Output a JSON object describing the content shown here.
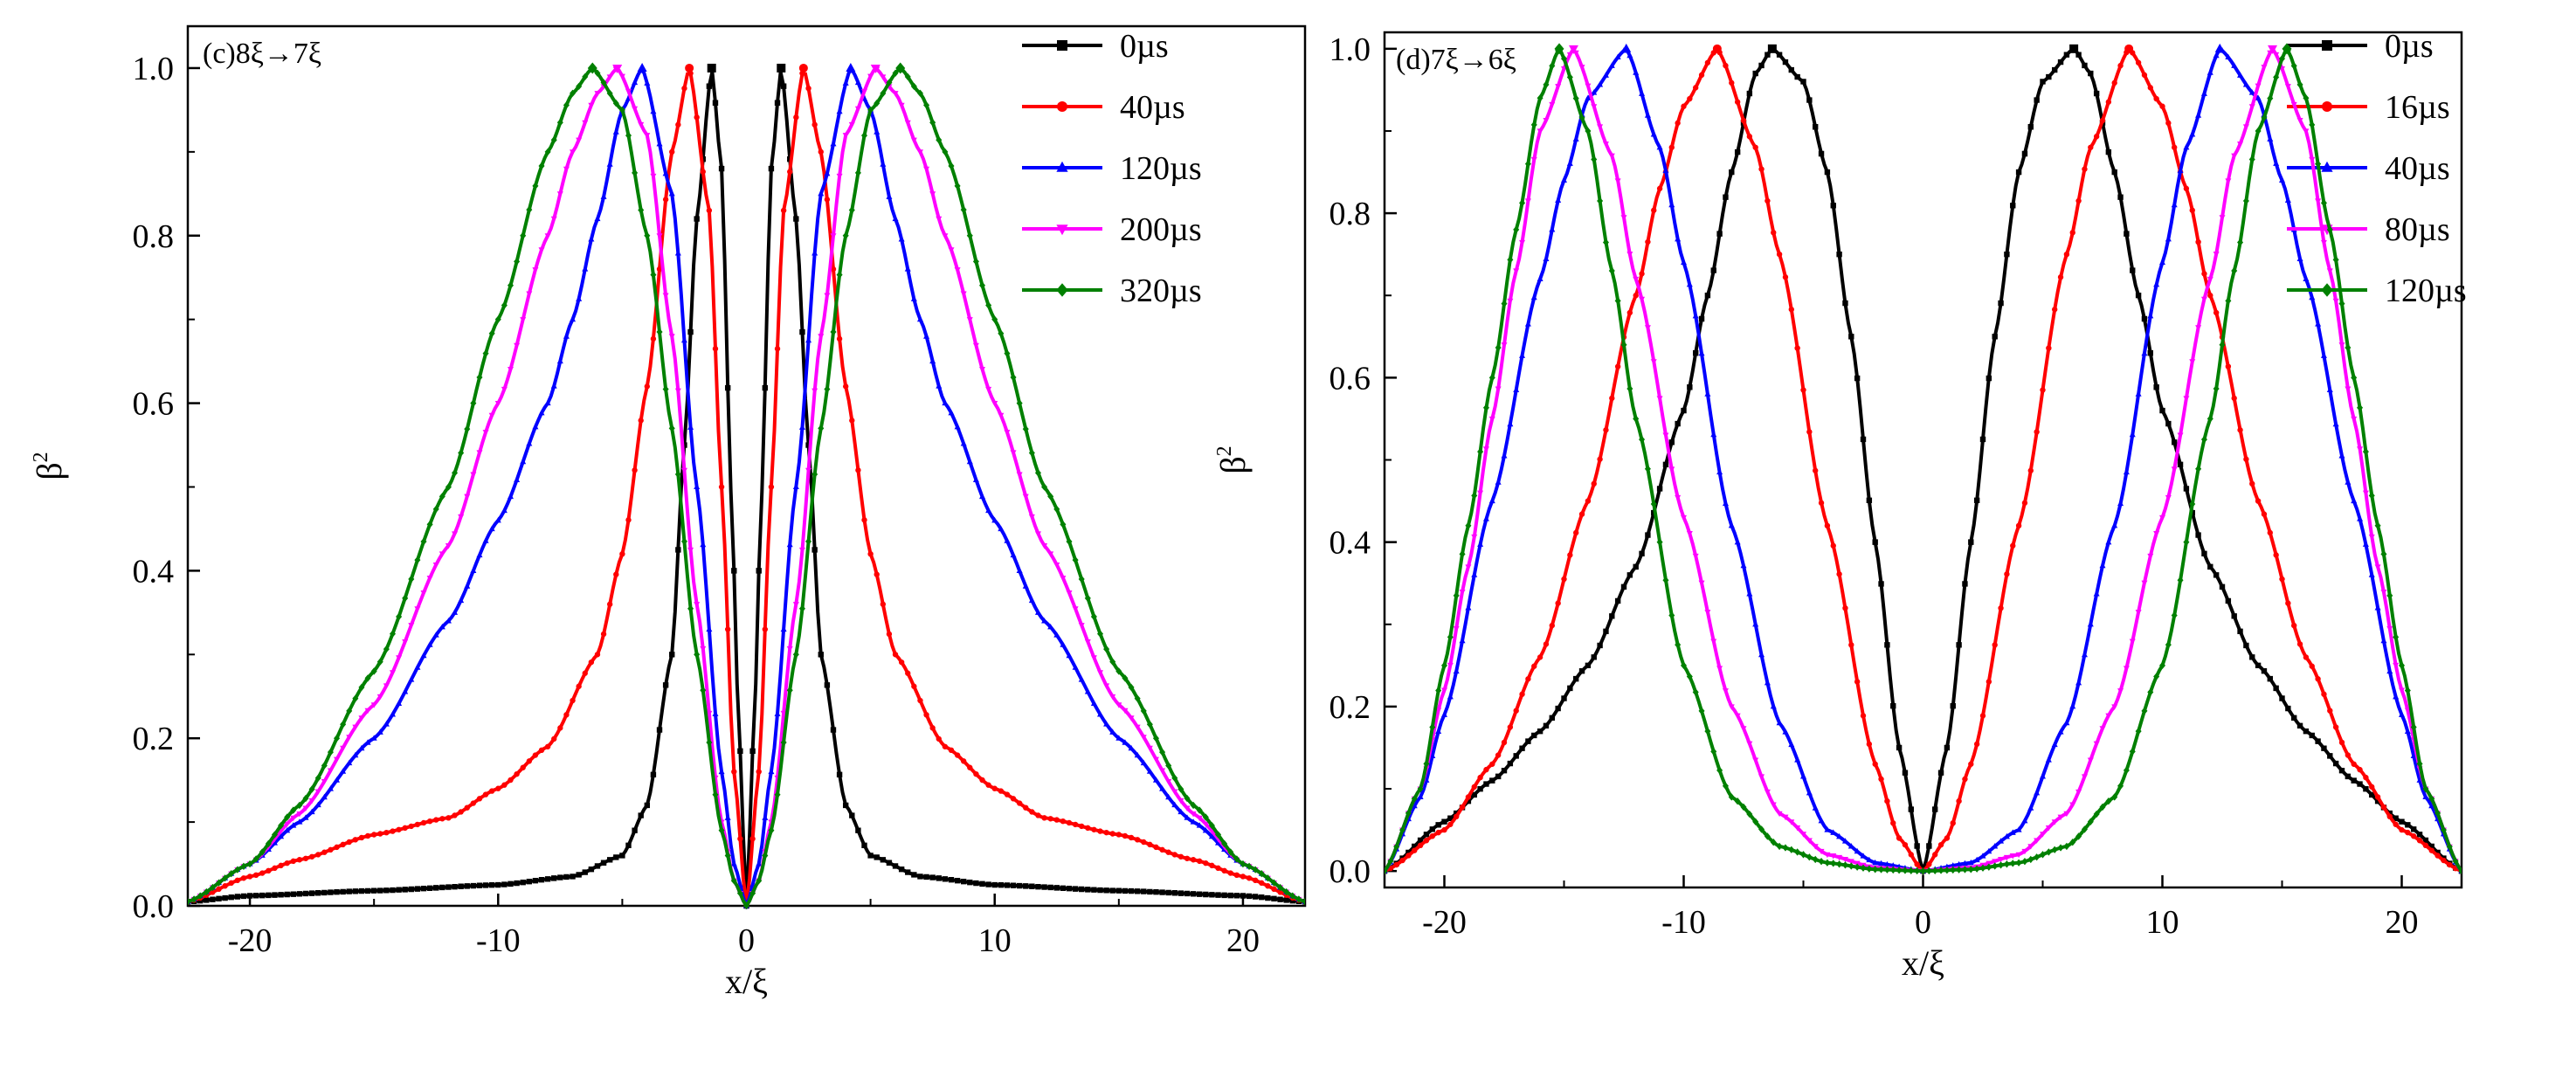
{
  "chart_data": [
    {
      "type": "line",
      "title": "(c)8ξ→7ξ",
      "xlabel": "x/ξ",
      "ylabel": "β",
      "ylabel_sup": "2",
      "xlim": [
        -22.5,
        22.5
      ],
      "ylim": [
        0,
        1.05
      ],
      "xticks": [
        -20,
        -10,
        0,
        10,
        20
      ],
      "yticks": [
        0.0,
        0.2,
        0.4,
        0.6,
        0.8,
        1.0
      ],
      "xtick_labels": [
        "-20",
        "-10",
        "0",
        "10",
        "20"
      ],
      "ytick_labels": [
        "0.0",
        "0.2",
        "0.4",
        "0.6",
        "0.8",
        "1.0"
      ],
      "legend_position": "top-right",
      "series": [
        {
          "name": "0µs",
          "color": "#000000",
          "marker": "square",
          "peak": 1.4,
          "x": [
            0,
            0.3,
            0.6,
            1.0,
            1.4,
            2.0,
            2.5,
            3.0,
            4.0,
            5.0,
            7.0,
            10.0,
            15.0,
            20.0,
            22.5
          ],
          "y": [
            0,
            0.21,
            0.48,
            0.88,
            1.0,
            0.82,
            0.55,
            0.3,
            0.12,
            0.06,
            0.035,
            0.025,
            0.018,
            0.012,
            0.005
          ]
        },
        {
          "name": "40µs",
          "color": "#ff0000",
          "marker": "circle",
          "peak": 2.3,
          "x": [
            0,
            0.5,
            1.0,
            1.5,
            2.3,
            3.0,
            4.0,
            5.0,
            6.0,
            8.0,
            10.0,
            12.0,
            15.0,
            18.0,
            20.0,
            22.5
          ],
          "y": [
            0,
            0.16,
            0.5,
            0.83,
            1.0,
            0.9,
            0.62,
            0.42,
            0.3,
            0.19,
            0.14,
            0.105,
            0.085,
            0.055,
            0.035,
            0.005
          ]
        },
        {
          "name": "120µs",
          "color": "#0000ff",
          "marker": "triangle",
          "peak": 4.2,
          "x": [
            0,
            0.5,
            1.0,
            2.0,
            3.0,
            4.2,
            5.0,
            6.0,
            7.0,
            8.0,
            10.0,
            12.0,
            15.0,
            18.0,
            20.0,
            22.5
          ],
          "y": [
            0,
            0.05,
            0.16,
            0.5,
            0.85,
            1.0,
            0.95,
            0.82,
            0.7,
            0.6,
            0.46,
            0.34,
            0.2,
            0.1,
            0.05,
            0.005
          ]
        },
        {
          "name": "200µs",
          "color": "#ff00ff",
          "marker": "tri-down",
          "peak": 5.2,
          "x": [
            0,
            0.5,
            1.0,
            2.0,
            3.0,
            4.0,
            5.2,
            6.0,
            7.0,
            8.0,
            10.0,
            12.0,
            15.0,
            18.0,
            20.0,
            22.5
          ],
          "y": [
            0,
            0.03,
            0.1,
            0.36,
            0.68,
            0.92,
            1.0,
            0.97,
            0.9,
            0.8,
            0.6,
            0.43,
            0.24,
            0.11,
            0.05,
            0.005
          ]
        },
        {
          "name": "320µs",
          "color": "#008000",
          "marker": "diamond",
          "peak": 6.2,
          "x": [
            0,
            0.5,
            1.0,
            2.0,
            3.0,
            4.0,
            5.0,
            6.2,
            7.0,
            8.0,
            10.0,
            12.0,
            15.0,
            18.0,
            20.0,
            22.5
          ],
          "y": [
            0,
            0.03,
            0.09,
            0.3,
            0.57,
            0.8,
            0.95,
            1.0,
            0.97,
            0.9,
            0.7,
            0.5,
            0.28,
            0.12,
            0.05,
            0.005
          ]
        }
      ]
    },
    {
      "type": "line",
      "title": "(d)7ξ→6ξ",
      "xlabel": "x/ξ",
      "ylabel": "β",
      "ylabel_sup": "2",
      "xlim": [
        -22.5,
        22.5
      ],
      "ylim": [
        -0.02,
        1.02
      ],
      "xticks": [
        -20,
        -10,
        0,
        10,
        20
      ],
      "yticks": [
        0.0,
        0.2,
        0.4,
        0.6,
        0.8,
        1.0
      ],
      "xtick_labels": [
        "-20",
        "-10",
        "0",
        "10",
        "20"
      ],
      "ytick_labels": [
        "0.0",
        "0.2",
        "0.4",
        "0.6",
        "0.8",
        "1.0"
      ],
      "legend_position": "top-right",
      "series": [
        {
          "name": "0µs",
          "color": "#000000",
          "marker": "square",
          "peak": 6.3,
          "x": [
            0,
            1.0,
            2.0,
            3.0,
            4.0,
            5.0,
            6.3,
            7.0,
            8.0,
            9.0,
            10.0,
            12.0,
            14.0,
            16.0,
            18.0,
            20.0,
            22.5
          ],
          "y": [
            0,
            0.15,
            0.4,
            0.65,
            0.85,
            0.96,
            1.0,
            0.97,
            0.85,
            0.7,
            0.56,
            0.37,
            0.25,
            0.17,
            0.11,
            0.06,
            0.0
          ]
        },
        {
          "name": "16µs",
          "color": "#ff0000",
          "marker": "circle",
          "peak": 8.6,
          "x": [
            0,
            1.0,
            2.0,
            4.0,
            6.0,
            7.0,
            8.6,
            10.0,
            11.0,
            12.0,
            14.0,
            16.0,
            18.0,
            20.0,
            22.5
          ],
          "y": [
            0,
            0.04,
            0.13,
            0.42,
            0.75,
            0.88,
            1.0,
            0.93,
            0.83,
            0.7,
            0.45,
            0.26,
            0.13,
            0.05,
            0.0
          ]
        },
        {
          "name": "40µs",
          "color": "#0000ff",
          "marker": "triangle",
          "peak": 12.4,
          "x": [
            0,
            2.0,
            4.0,
            6.0,
            8.0,
            10.0,
            11.0,
            12.4,
            14.0,
            15.0,
            16.0,
            18.0,
            20.0,
            21.0,
            22.5
          ],
          "y": [
            0,
            0.01,
            0.05,
            0.18,
            0.42,
            0.74,
            0.88,
            1.0,
            0.94,
            0.84,
            0.72,
            0.45,
            0.19,
            0.09,
            0.0
          ]
        },
        {
          "name": "80µs",
          "color": "#ff00ff",
          "marker": "tri-down",
          "peak": 14.6,
          "x": [
            0,
            2.0,
            4.0,
            6.0,
            8.0,
            10.0,
            12.0,
            13.0,
            14.6,
            16.0,
            17.0,
            18.0,
            19.0,
            20.0,
            21.0,
            22.5
          ],
          "y": [
            0,
            0.004,
            0.02,
            0.07,
            0.2,
            0.43,
            0.72,
            0.87,
            1.0,
            0.9,
            0.73,
            0.55,
            0.37,
            0.22,
            0.1,
            0.0
          ]
        },
        {
          "name": "120µs",
          "color": "#008000",
          "marker": "diamond",
          "peak": 15.2,
          "x": [
            0,
            2.0,
            4.0,
            6.0,
            8.0,
            10.0,
            12.0,
            13.0,
            14.0,
            15.2,
            16.0,
            17.0,
            18.0,
            19.0,
            20.0,
            21.0,
            22.5
          ],
          "y": [
            0,
            0.002,
            0.01,
            0.03,
            0.09,
            0.25,
            0.55,
            0.73,
            0.9,
            1.0,
            0.94,
            0.78,
            0.6,
            0.42,
            0.25,
            0.1,
            0.0
          ]
        }
      ]
    }
  ]
}
